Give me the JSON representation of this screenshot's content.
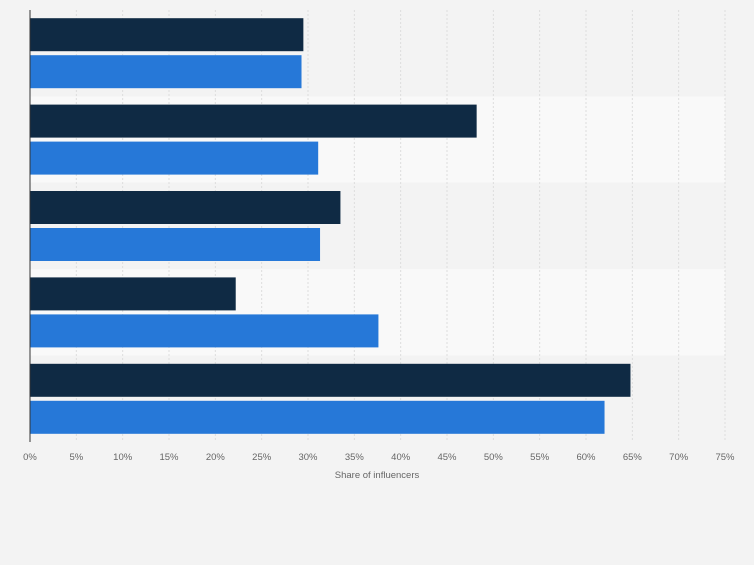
{
  "chart_data": {
    "type": "bar",
    "orientation": "horizontal",
    "categories": [
      "",
      "",
      "",
      "",
      ""
    ],
    "series": [
      {
        "values": [
          29.5,
          48.2,
          33.5,
          22.2,
          64.8
        ]
      },
      {
        "values": [
          29.3,
          31.1,
          31.3,
          37.6,
          62.0
        ]
      }
    ],
    "series_colors": [
      "#0f2a44",
      "#2678d8"
    ],
    "xlabel": "Share of influencers",
    "xlim": [
      0,
      75
    ],
    "x_ticks": [
      "0%",
      "5%",
      "10%",
      "15%",
      "20%",
      "25%",
      "30%",
      "35%",
      "40%",
      "45%",
      "50%",
      "55%",
      "60%",
      "65%",
      "70%",
      "75%"
    ],
    "grid": true,
    "legend": "none"
  }
}
